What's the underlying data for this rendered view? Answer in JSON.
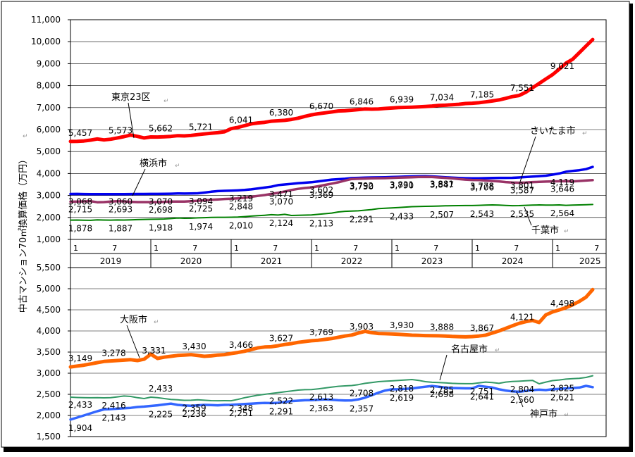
{
  "ylabel": "中古マンション70㎡換算価格（万円）",
  "years": [
    "2019",
    "2020",
    "2021",
    "2022",
    "2023",
    "2024",
    "2025"
  ],
  "month_labels": [
    "1",
    "7"
  ],
  "chart_data": [
    {
      "type": "line",
      "name": "top-panel",
      "ylim": [
        1000,
        11000
      ],
      "yticks": [
        1000,
        2000,
        3000,
        4000,
        5000,
        6000,
        7000,
        8000,
        9000,
        10000,
        11000
      ],
      "x_range": [
        0,
        80
      ],
      "series": [
        {
          "name": "東京23区",
          "color": "#ff0000",
          "width": 5,
          "values": [
            5457,
            5460,
            5480,
            5520,
            5573,
            5530,
            5560,
            5620,
            5680,
            5750,
            5690,
            5620,
            5662,
            5660,
            5670,
            5690,
            5721,
            5710,
            5730,
            5770,
            5800,
            5830,
            5860,
            5900,
            6041,
            6100,
            6180,
            6260,
            6300,
            6330,
            6380,
            6400,
            6420,
            6460,
            6520,
            6600,
            6670,
            6720,
            6760,
            6800,
            6846,
            6860,
            6880,
            6910,
            6939,
            6930,
            6940,
            6960,
            6980,
            7000,
            7010,
            7020,
            7034,
            7050,
            7070,
            7100,
            7110,
            7130,
            7150,
            7185,
            7200,
            7220,
            7260,
            7300,
            7350,
            7420,
            7500,
            7551,
            7700,
            7900,
            8100,
            8300,
            8500,
            8750,
            9021,
            9200,
            9500,
            9800,
            10100
          ],
          "labels": [
            {
              "i": 0,
              "v": "5,457"
            },
            {
              "i": 6,
              "v": "5,573"
            },
            {
              "i": 12,
              "v": "5,662"
            },
            {
              "i": 18,
              "v": "5,721"
            },
            {
              "i": 24,
              "v": "6,041"
            },
            {
              "i": 30,
              "v": "6,380"
            },
            {
              "i": 36,
              "v": "6,670"
            },
            {
              "i": 42,
              "v": "6,846"
            },
            {
              "i": 48,
              "v": "6,939"
            },
            {
              "i": 54,
              "v": "7,034"
            },
            {
              "i": 60,
              "v": "7,185"
            },
            {
              "i": 66,
              "v": "7,551"
            },
            {
              "i": 72,
              "v": "9,021"
            }
          ]
        },
        {
          "name": "さいたま市",
          "color": "#0000ee",
          "width": 3.5,
          "values": [
            3068,
            3070,
            3065,
            3062,
            3060,
            3062,
            3060,
            3058,
            3062,
            3065,
            3066,
            3068,
            3070,
            3072,
            3075,
            3080,
            3094,
            3085,
            3090,
            3100,
            3130,
            3170,
            3200,
            3210,
            3219,
            3230,
            3250,
            3280,
            3320,
            3360,
            3400,
            3471,
            3500,
            3530,
            3560,
            3580,
            3602,
            3640,
            3680,
            3720,
            3740,
            3760,
            3792,
            3800,
            3810,
            3820,
            3825,
            3831,
            3840,
            3850,
            3860,
            3870,
            3875,
            3881,
            3870,
            3850,
            3830,
            3810,
            3795,
            3785,
            3778,
            3780,
            3790,
            3795,
            3800,
            3801,
            3805,
            3820,
            3840,
            3860,
            3880,
            3900,
            3950,
            4000,
            4080,
            4119,
            4150,
            4200,
            4300
          ],
          "labels": [
            {
              "i": 0,
              "v": "3,068"
            },
            {
              "i": 6,
              "v": "3,060"
            },
            {
              "i": 12,
              "v": "3,070"
            },
            {
              "i": 18,
              "v": "3,094"
            },
            {
              "i": 24,
              "v": "3,219"
            },
            {
              "i": 30,
              "v": "3,471"
            },
            {
              "i": 36,
              "v": "3,602"
            },
            {
              "i": 42,
              "v": "3,792"
            },
            {
              "i": 48,
              "v": "3,831"
            },
            {
              "i": 54,
              "v": "3,881"
            },
            {
              "i": 60,
              "v": "3,778"
            },
            {
              "i": 66,
              "v": "3,801"
            },
            {
              "i": 72,
              "v": "4,119"
            }
          ]
        },
        {
          "name": "横浜市",
          "color": "#993366",
          "width": 3.5,
          "values": [
            2715,
            2720,
            2730,
            2740,
            2693,
            2700,
            2720,
            2740,
            2730,
            2710,
            2700,
            2698,
            2698,
            2700,
            2710,
            2720,
            2725,
            2720,
            2740,
            2760,
            2780,
            2800,
            2820,
            2840,
            2848,
            2870,
            2900,
            2940,
            2980,
            3020,
            3070,
            3120,
            3180,
            3250,
            3300,
            3340,
            3369,
            3420,
            3480,
            3540,
            3600,
            3680,
            3750,
            3760,
            3770,
            3780,
            3785,
            3790,
            3800,
            3810,
            3820,
            3830,
            3840,
            3847,
            3840,
            3820,
            3800,
            3780,
            3750,
            3720,
            3706,
            3700,
            3680,
            3660,
            3640,
            3610,
            3587,
            3580,
            3590,
            3610,
            3620,
            3630,
            3640,
            3646,
            3650,
            3640,
            3660,
            3680,
            3700
          ],
          "labels": [
            {
              "i": 0,
              "v": "2,715"
            },
            {
              "i": 6,
              "v": "2,693"
            },
            {
              "i": 12,
              "v": "2,698"
            },
            {
              "i": 18,
              "v": "2,725"
            },
            {
              "i": 24,
              "v": "2,848"
            },
            {
              "i": 30,
              "v": "3,070"
            },
            {
              "i": 36,
              "v": "3,369"
            },
            {
              "i": 42,
              "v": "3,750"
            },
            {
              "i": 48,
              "v": "3,790"
            },
            {
              "i": 54,
              "v": "3,847"
            },
            {
              "i": 60,
              "v": "3,706"
            },
            {
              "i": 66,
              "v": "3,587"
            },
            {
              "i": 72,
              "v": "3,646"
            }
          ]
        },
        {
          "name": "千葉市",
          "color": "#008000",
          "width": 2,
          "values": [
            1878,
            1880,
            1875,
            1870,
            1887,
            1880,
            1878,
            1885,
            1880,
            1890,
            1900,
            1910,
            1918,
            1920,
            1930,
            1950,
            1974,
            1960,
            1965,
            1980,
            1990,
            2000,
            2005,
            2008,
            2010,
            2020,
            2040,
            2060,
            2080,
            2100,
            2124,
            2110,
            2140,
            2090,
            2100,
            2105,
            2113,
            2140,
            2170,
            2200,
            2250,
            2280,
            2291,
            2300,
            2330,
            2360,
            2400,
            2420,
            2433,
            2450,
            2470,
            2490,
            2500,
            2507,
            2510,
            2520,
            2530,
            2535,
            2540,
            2542,
            2543,
            2550,
            2560,
            2570,
            2560,
            2545,
            2535,
            2540,
            2550,
            2560,
            2570,
            2560,
            2564,
            2570,
            2550,
            2560,
            2570,
            2580,
            2590
          ],
          "labels": [
            {
              "i": 0,
              "v": "1,878"
            },
            {
              "i": 6,
              "v": "1,887"
            },
            {
              "i": 12,
              "v": "1,918"
            },
            {
              "i": 18,
              "v": "1,974"
            },
            {
              "i": 24,
              "v": "2,010"
            },
            {
              "i": 30,
              "v": "2,124"
            },
            {
              "i": 36,
              "v": "2,113"
            },
            {
              "i": 42,
              "v": "2,291"
            },
            {
              "i": 48,
              "v": "2,433"
            },
            {
              "i": 54,
              "v": "2,507"
            },
            {
              "i": 60,
              "v": "2,543"
            },
            {
              "i": 66,
              "v": "2,535"
            },
            {
              "i": 72,
              "v": "2,564"
            }
          ]
        }
      ],
      "annotations": [
        "東京23区",
        "横浜市",
        "さいたま市",
        "千葉市"
      ]
    },
    {
      "type": "line",
      "name": "bottom-panel",
      "ylim": [
        1500,
        5500
      ],
      "yticks": [
        1500,
        2000,
        2500,
        3000,
        3500,
        4000,
        4500,
        5000,
        5500
      ],
      "x_range": [
        0,
        80
      ],
      "series": [
        {
          "name": "大阪市",
          "color": "#ff6600",
          "width": 5,
          "values": [
            3149,
            3170,
            3190,
            3220,
            3250,
            3278,
            3290,
            3300,
            3310,
            3320,
            3300,
            3331,
            3450,
            3350,
            3380,
            3400,
            3420,
            3430,
            3440,
            3420,
            3400,
            3410,
            3430,
            3440,
            3466,
            3490,
            3520,
            3560,
            3600,
            3620,
            3627,
            3650,
            3680,
            3700,
            3730,
            3750,
            3769,
            3780,
            3800,
            3820,
            3850,
            3880,
            3903,
            3950,
            3990,
            3960,
            3940,
            3935,
            3930,
            3920,
            3910,
            3900,
            3895,
            3890,
            3888,
            3885,
            3880,
            3870,
            3865,
            3860,
            3867,
            3880,
            3900,
            3950,
            4000,
            4060,
            4121,
            4180,
            4220,
            4250,
            4200,
            4380,
            4450,
            4498,
            4550,
            4620,
            4700,
            4800,
            4980
          ],
          "labels": [
            {
              "i": 0,
              "v": "3,149"
            },
            {
              "i": 5,
              "v": "3,278"
            },
            {
              "i": 11,
              "v": "3,331"
            },
            {
              "i": 17,
              "v": "3,430"
            },
            {
              "i": 24,
              "v": "3,466"
            },
            {
              "i": 30,
              "v": "3,627"
            },
            {
              "i": 36,
              "v": "3,769"
            },
            {
              "i": 42,
              "v": "3,903"
            },
            {
              "i": 48,
              "v": "3,930"
            },
            {
              "i": 54,
              "v": "3,888"
            },
            {
              "i": 60,
              "v": "3,867"
            },
            {
              "i": 66,
              "v": "4,121"
            },
            {
              "i": 72,
              "v": "4,498"
            }
          ]
        },
        {
          "name": "名古屋市",
          "color": "#339966",
          "width": 2,
          "values": [
            2433,
            2425,
            2420,
            2418,
            2420,
            2416,
            2420,
            2440,
            2460,
            2450,
            2420,
            2400,
            2433,
            2420,
            2400,
            2380,
            2370,
            2359,
            2360,
            2370,
            2360,
            2350,
            2348,
            2350,
            2348,
            2380,
            2420,
            2450,
            2480,
            2500,
            2522,
            2540,
            2560,
            2580,
            2600,
            2610,
            2613,
            2630,
            2650,
            2670,
            2690,
            2700,
            2708,
            2730,
            2760,
            2780,
            2800,
            2810,
            2818,
            2830,
            2840,
            2850,
            2830,
            2800,
            2785,
            2780,
            2770,
            2760,
            2755,
            2752,
            2751,
            2770,
            2790,
            2780,
            2760,
            2790,
            2804,
            2810,
            2820,
            2830,
            2750,
            2790,
            2825,
            2840,
            2860,
            2870,
            2880,
            2900,
            2940
          ],
          "labels": [
            {
              "i": 0,
              "v": "2,433"
            },
            {
              "i": 5,
              "v": "2,416"
            },
            {
              "i": 12,
              "v": "2,433"
            },
            {
              "i": 17,
              "v": "2,359"
            },
            {
              "i": 24,
              "v": "2,348"
            },
            {
              "i": 30,
              "v": "2,522"
            },
            {
              "i": 36,
              "v": "2,613"
            },
            {
              "i": 42,
              "v": "2,708"
            },
            {
              "i": 48,
              "v": "2,818"
            },
            {
              "i": 54,
              "v": "2,785"
            },
            {
              "i": 60,
              "v": "2,751"
            },
            {
              "i": 66,
              "v": "2,804"
            },
            {
              "i": 72,
              "v": "2,825"
            }
          ]
        },
        {
          "name": "神戸市",
          "color": "#3366ff",
          "width": 3.5,
          "values": [
            1904,
            1950,
            2000,
            2050,
            2100,
            2143,
            2150,
            2160,
            2170,
            2180,
            2200,
            2210,
            2225,
            2240,
            2260,
            2280,
            2250,
            2236,
            2230,
            2240,
            2250,
            2245,
            2240,
            2250,
            2251,
            2260,
            2270,
            2280,
            2290,
            2295,
            2291,
            2300,
            2320,
            2340,
            2350,
            2360,
            2363,
            2370,
            2380,
            2370,
            2360,
            2355,
            2357,
            2380,
            2420,
            2480,
            2540,
            2590,
            2619,
            2620,
            2630,
            2640,
            2660,
            2680,
            2698,
            2680,
            2660,
            2650,
            2645,
            2642,
            2641,
            2700,
            2680,
            2660,
            2620,
            2590,
            2570,
            2560,
            2580,
            2600,
            2610,
            2600,
            2621,
            2630,
            2640,
            2650,
            2660,
            2700,
            2670
          ],
          "labels": [
            {
              "i": 0,
              "v": "1,904"
            },
            {
              "i": 5,
              "v": "2,143"
            },
            {
              "i": 12,
              "v": "2,225"
            },
            {
              "i": 17,
              "v": "2,236"
            },
            {
              "i": 24,
              "v": "2,251"
            },
            {
              "i": 30,
              "v": "2,291"
            },
            {
              "i": 36,
              "v": "2,363"
            },
            {
              "i": 42,
              "v": "2,357"
            },
            {
              "i": 48,
              "v": "2,619"
            },
            {
              "i": 54,
              "v": "2,698"
            },
            {
              "i": 60,
              "v": "2,641"
            },
            {
              "i": 66,
              "v": "2,560"
            },
            {
              "i": 72,
              "v": "2,621"
            }
          ]
        }
      ],
      "annotations": [
        "大阪市",
        "名古屋市",
        "神戸市"
      ]
    }
  ]
}
